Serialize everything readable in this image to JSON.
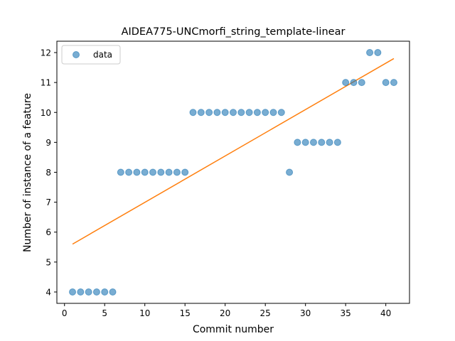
{
  "chart_data": {
    "type": "scatter",
    "title": "AIDEA775-UNCmorfi_string_template-linear",
    "xlabel": "Commit number",
    "ylabel": "Number of instance of a feature",
    "xlim": [
      -0.95,
      42.95
    ],
    "ylim": [
      3.62,
      12.38
    ],
    "xticks": [
      0,
      5,
      10,
      15,
      20,
      25,
      30,
      35,
      40
    ],
    "yticks": [
      4,
      5,
      6,
      7,
      8,
      9,
      10,
      11,
      12
    ],
    "grid": false,
    "legend_position": "upper-left",
    "series": [
      {
        "name": "data",
        "kind": "scatter",
        "color": "#1f77b4",
        "x": [
          1,
          2,
          3,
          4,
          5,
          6,
          7,
          8,
          9,
          10,
          11,
          12,
          13,
          14,
          15,
          16,
          17,
          18,
          19,
          20,
          21,
          22,
          23,
          24,
          25,
          26,
          27,
          28,
          29,
          30,
          31,
          32,
          33,
          34,
          35,
          36,
          37,
          38,
          39,
          40,
          41
        ],
        "y": [
          4,
          4,
          4,
          4,
          4,
          4,
          8,
          8,
          8,
          8,
          8,
          8,
          8,
          8,
          8,
          10,
          10,
          10,
          10,
          10,
          10,
          10,
          10,
          10,
          10,
          10,
          10,
          8,
          9,
          9,
          9,
          9,
          9,
          9,
          11,
          11,
          11,
          12,
          12,
          11,
          11
        ]
      },
      {
        "kind": "line",
        "color": "#ff7f0e",
        "x": [
          1,
          41
        ],
        "y": [
          5.6,
          11.8
        ]
      }
    ]
  }
}
